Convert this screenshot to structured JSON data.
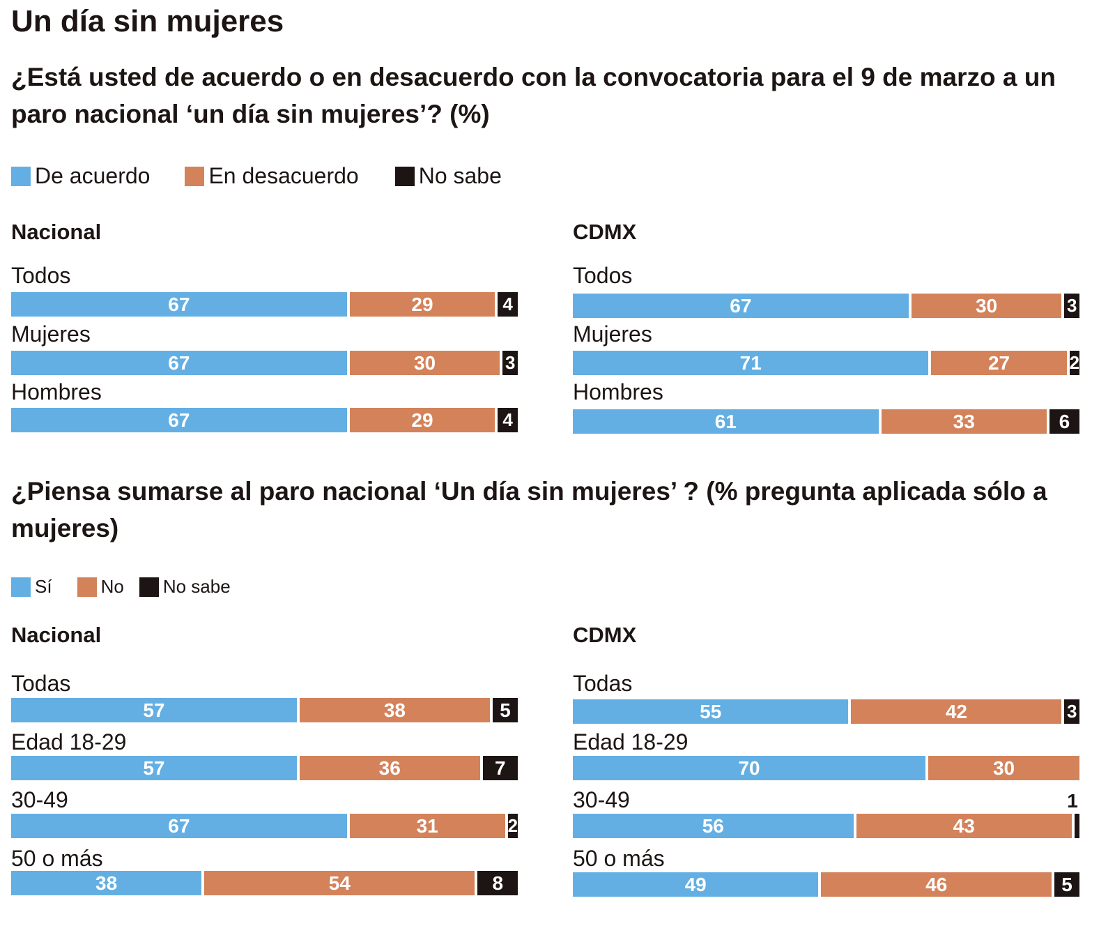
{
  "title": "Un día sin mujeres",
  "colors": {
    "first": "#63afe3",
    "second": "#d4825a",
    "third": "#1c1514"
  },
  "q1": {
    "question": "¿Está usted de acuerdo o en desacuerdo con la convocatoria para el 9 de marzo a un paro nacional ‘un día sin mujeres’? (%)",
    "legend": [
      "De acuerdo",
      "En desacuerdo",
      "No sabe"
    ]
  },
  "q2": {
    "question": "¿Piensa sumarse al paro nacional ‘Un día sin mujeres’ ? (% pregunta aplicada sólo a mujeres)",
    "legend": [
      "Sí",
      "No",
      "No sabe"
    ]
  },
  "chart_data": [
    {
      "type": "bar",
      "title": "Nacional",
      "categories": [
        "Todos",
        "Mujeres",
        "Hombres"
      ],
      "series": [
        {
          "name": "De acuerdo",
          "values": [
            67,
            67,
            67
          ]
        },
        {
          "name": "En desacuerdo",
          "values": [
            29,
            30,
            29
          ]
        },
        {
          "name": "No sabe",
          "values": [
            4,
            3,
            4
          ]
        }
      ]
    },
    {
      "type": "bar",
      "title": "CDMX",
      "categories": [
        "Todos",
        "Mujeres",
        "Hombres"
      ],
      "series": [
        {
          "name": "De acuerdo",
          "values": [
            67,
            71,
            61
          ]
        },
        {
          "name": "En desacuerdo",
          "values": [
            30,
            27,
            33
          ]
        },
        {
          "name": "No sabe",
          "values": [
            3,
            2,
            6
          ]
        }
      ]
    },
    {
      "type": "bar",
      "title": "Nacional",
      "categories": [
        "Todas",
        "Edad 18-29",
        "30-49",
        "50 o más"
      ],
      "series": [
        {
          "name": "Sí",
          "values": [
            57,
            57,
            67,
            38
          ]
        },
        {
          "name": "No",
          "values": [
            38,
            36,
            31,
            54
          ]
        },
        {
          "name": "No sabe",
          "values": [
            5,
            7,
            2,
            8
          ]
        }
      ]
    },
    {
      "type": "bar",
      "title": "CDMX",
      "categories": [
        "Todas",
        "Edad 18-29",
        "30-49",
        "50 o más"
      ],
      "series": [
        {
          "name": "Sí",
          "values": [
            55,
            70,
            56,
            49
          ]
        },
        {
          "name": "No",
          "values": [
            42,
            30,
            43,
            46
          ]
        },
        {
          "name": "No sabe",
          "values": [
            3,
            null,
            1,
            5
          ]
        }
      ]
    }
  ]
}
